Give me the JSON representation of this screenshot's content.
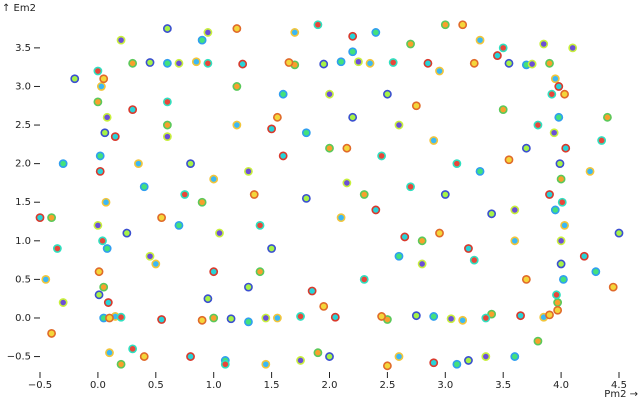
{
  "chart_data": {
    "type": "scatter",
    "x_label": "Pm2 →",
    "y_label": "↑ Em2",
    "xlim": [
      -0.5,
      4.5
    ],
    "ylim": [
      -0.7,
      3.9
    ],
    "xticks": [
      {
        "value": -0.5,
        "label": "−0.5"
      },
      {
        "value": 0,
        "label": "0.0"
      },
      0.5,
      {
        "value": 1,
        "label": "1.0"
      },
      1.5,
      {
        "value": 2,
        "label": "2.0"
      },
      2.5,
      {
        "value": 3,
        "label": "3.0"
      },
      3.5,
      {
        "value": 4,
        "label": "4.0"
      },
      4.5
    ],
    "yticks": [
      {
        "value": -0.5,
        "label": "−0.5"
      },
      {
        "value": 0,
        "label": "0.0"
      },
      0.5,
      {
        "value": 1,
        "label": "1.0"
      },
      1.5,
      {
        "value": 2,
        "label": "2.0"
      },
      2.5,
      {
        "value": 3,
        "label": "3.0"
      },
      3.5
    ],
    "grid": false,
    "series": [
      {
        "color": "#43e17c",
        "stroke": "#2f9ef0",
        "x": [
          0.05,
          0.6,
          1.3,
          2.1,
          2.9,
          3.7,
          3.95,
          0.02,
          0.08,
          3.98,
          4.02,
          0.4,
          1.8,
          2.6,
          3.3,
          1.1,
          2.4,
          3.1,
          0.7,
          1.6,
          -0.3,
          4.3,
          2.2,
          0.9,
          3.6
        ],
        "values": [
          0.0,
          3.3,
          -0.05,
          3.32,
          0.02,
          3.28,
          1.4,
          2.1,
          0.9,
          2.6,
          0.5,
          1.7,
          2.4,
          0.8,
          1.9,
          -0.55,
          3.7,
          -0.6,
          1.2,
          2.9,
          2.0,
          0.6,
          3.45,
          3.6,
          -0.5
        ]
      },
      {
        "color": "#f8a02c",
        "stroke": "#5ac95a",
        "x": [
          0.3,
          1.0,
          1.7,
          2.5,
          3.4,
          3.9,
          0.0,
          0.05,
          4.0,
          3.97,
          0.9,
          2.0,
          2.8,
          3.5,
          1.4,
          0.2,
          3.0,
          2.3,
          1.9,
          -0.4,
          4.4,
          0.6,
          2.7,
          1.2,
          3.8
        ],
        "values": [
          3.3,
          0.0,
          3.28,
          -0.02,
          0.05,
          3.3,
          2.8,
          0.4,
          1.8,
          0.2,
          1.5,
          2.2,
          1.0,
          2.7,
          0.6,
          -0.6,
          3.8,
          1.6,
          -0.45,
          1.3,
          2.6,
          2.5,
          3.55,
          3.0,
          -0.3
        ]
      },
      {
        "color": "#3bb8f5",
        "stroke": "#f2c53a",
        "x": [
          0.15,
          0.85,
          1.55,
          2.35,
          3.15,
          3.85,
          0.03,
          0.07,
          3.95,
          4.03,
          0.5,
          1.2,
          2.1,
          2.9,
          3.6,
          1.7,
          2.6,
          3.3,
          0.35,
          1.0,
          -0.45,
          4.25,
          1.45,
          2.95,
          0.1
        ],
        "values": [
          0.02,
          3.32,
          0.0,
          3.3,
          -0.03,
          0.01,
          3.0,
          1.5,
          3.1,
          1.2,
          0.7,
          2.5,
          1.3,
          2.3,
          1.0,
          3.7,
          -0.5,
          3.6,
          2.0,
          1.8,
          0.5,
          1.9,
          -0.6,
          3.2,
          -0.45
        ]
      },
      {
        "color": "#a6f247",
        "stroke": "#3a4fd0",
        "x": [
          0.45,
          1.15,
          1.95,
          2.75,
          3.55,
          0.01,
          0.06,
          3.99,
          4.0,
          0.25,
          0.8,
          1.5,
          2.2,
          3.0,
          3.7,
          1.3,
          2.5,
          3.2,
          0.6,
          2.0,
          -0.2,
          4.5,
          3.4,
          1.8,
          0.95
        ],
        "values": [
          3.31,
          -0.01,
          3.29,
          0.03,
          3.3,
          0.3,
          2.4,
          2.0,
          0.7,
          1.1,
          2.0,
          0.9,
          2.6,
          1.6,
          2.2,
          0.4,
          2.9,
          -0.55,
          3.75,
          -0.5,
          3.1,
          1.1,
          1.35,
          1.55,
          0.25
        ]
      },
      {
        "color": "#e8463a",
        "stroke": "#2fe0c0",
        "x": [
          0.2,
          0.95,
          1.75,
          2.55,
          3.35,
          3.92,
          0.04,
          0.0,
          4.01,
          3.96,
          0.6,
          1.4,
          2.3,
          3.1,
          3.8,
          1.9,
          2.7,
          0.3,
          3.5,
          1.1,
          -0.35,
          4.35,
          2.45,
          0.75,
          3.25
        ],
        "values": [
          0.01,
          3.3,
          0.02,
          3.31,
          0.0,
          2.9,
          1.0,
          3.2,
          1.5,
          0.3,
          2.8,
          1.2,
          0.5,
          2.0,
          2.5,
          3.8,
          1.7,
          -0.4,
          3.5,
          -0.6,
          0.9,
          2.3,
          2.1,
          1.6,
          0.75
        ]
      },
      {
        "color": "#27d3d8",
        "stroke": "#d9392c",
        "x": [
          0.55,
          1.25,
          2.05,
          2.85,
          3.65,
          0.02,
          0.09,
          3.98,
          4.04,
          0.3,
          1.0,
          1.6,
          2.4,
          3.2,
          3.9,
          0.8,
          2.2,
          2.9,
          1.5,
          3.45,
          -0.5,
          4.2,
          0.15,
          2.65,
          1.85
        ],
        "values": [
          -0.02,
          3.29,
          0.01,
          3.3,
          0.03,
          1.9,
          0.2,
          3.0,
          2.2,
          2.7,
          0.6,
          2.1,
          1.4,
          0.9,
          1.6,
          -0.5,
          3.65,
          -0.58,
          2.45,
          3.4,
          1.3,
          0.8,
          2.35,
          1.05,
          0.35
        ]
      },
      {
        "color": "#6b4fd6",
        "stroke": "#c8f03c",
        "x": [
          0.7,
          1.45,
          2.25,
          3.05,
          3.75,
          0.0,
          0.08,
          4.0,
          3.94,
          0.45,
          1.3,
          2.0,
          2.8,
          3.6,
          0.95,
          1.75,
          2.6,
          3.35,
          0.2,
          4.1,
          -0.3,
          2.15,
          1.05,
          3.85,
          0.6
        ],
        "values": [
          3.3,
          0.0,
          3.32,
          -0.01,
          3.29,
          1.2,
          2.6,
          1.0,
          2.4,
          0.8,
          1.9,
          2.9,
          0.7,
          1.4,
          3.7,
          -0.55,
          2.5,
          -0.5,
          3.6,
          3.5,
          0.2,
          1.75,
          1.1,
          3.55,
          2.35
        ]
      },
      {
        "color": "#f4d63a",
        "stroke": "#e06a2a",
        "x": [
          0.1,
          0.9,
          1.65,
          2.45,
          3.25,
          3.9,
          0.01,
          0.05,
          3.97,
          4.03,
          0.55,
          1.35,
          2.15,
          2.95,
          3.7,
          1.2,
          2.5,
          3.15,
          0.4,
          1.95,
          -0.4,
          4.45,
          3.55,
          2.75,
          1.55
        ],
        "values": [
          0.0,
          -0.03,
          3.31,
          0.02,
          3.3,
          0.04,
          0.6,
          3.1,
          0.1,
          2.9,
          1.3,
          1.6,
          2.2,
          1.1,
          0.5,
          3.75,
          -0.62,
          3.8,
          -0.5,
          0.15,
          -0.2,
          0.4,
          2.05,
          2.75,
          2.6
        ]
      }
    ]
  }
}
